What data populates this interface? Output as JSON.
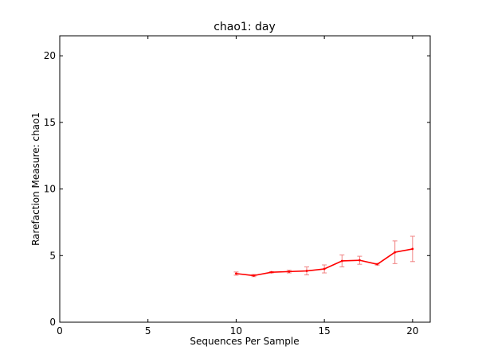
{
  "chart_data": {
    "type": "line",
    "title": "chao1: day",
    "xlabel": "Sequences Per Sample",
    "ylabel": "Rarefaction Measure: chao1",
    "xlim": [
      0,
      21
    ],
    "ylim": [
      0,
      21.5
    ],
    "xticks": [
      0,
      5,
      10,
      15,
      20
    ],
    "yticks": [
      0,
      5,
      10,
      15,
      20
    ],
    "xtick_labels": [
      "0",
      "5",
      "10",
      "15",
      "20"
    ],
    "ytick_labels": [
      "0",
      "5",
      "10",
      "15",
      "20"
    ],
    "grid": false,
    "series": [
      {
        "color": "#ff0000",
        "error_color": "#f08080",
        "x": [
          10,
          11,
          12,
          13,
          14,
          15,
          16,
          17,
          18,
          19,
          20
        ],
        "y": [
          3.65,
          3.5,
          3.75,
          3.8,
          3.85,
          4.0,
          4.6,
          4.65,
          4.35,
          5.25,
          5.5
        ],
        "yerr": [
          0.12,
          0.08,
          0.05,
          0.1,
          0.3,
          0.3,
          0.45,
          0.3,
          0.06,
          0.85,
          0.95
        ]
      }
    ]
  }
}
